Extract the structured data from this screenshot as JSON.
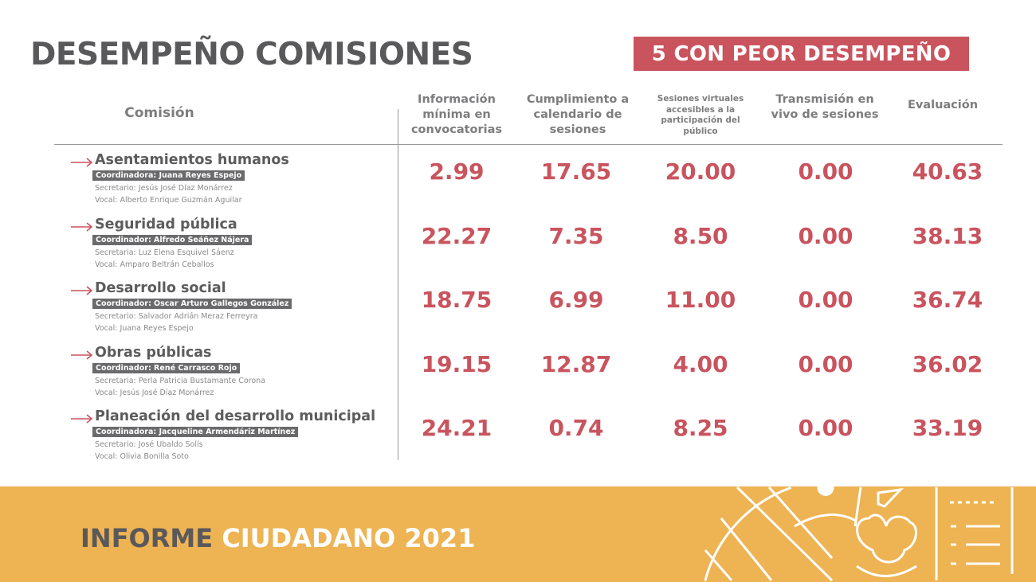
{
  "title": "DESEMPEÑO COMISIONES",
  "badge": "5 CON PEOR DESEMPEÑO",
  "headers": {
    "comision": "Comisión",
    "info": "Información mínima en convocatorias",
    "cumplimiento": "Cumplimiento a calendario de sesiones",
    "virtuales": "Sesiones virtuales accesibles a la participación del público",
    "transmision": "Transmisión en vivo de sesiones",
    "evaluacion": "Evaluación"
  },
  "rows": [
    {
      "name": "Asentamientos humanos",
      "coord": "Coordinadora: Juana Reyes Espejo",
      "sec": "Secretario: Jesús José Díaz Monárrez",
      "vocal": "Vocal: Alberto Enrique Guzmán Aguilar",
      "values": [
        "2.99",
        "17.65",
        "20.00",
        "0.00",
        "40.63"
      ]
    },
    {
      "name": "Seguridad pública",
      "coord": "Coordinador: Alfredo Seáñez Nájera",
      "sec": "Secretaria: Luz Elena Esquivel Sáenz",
      "vocal": "Vocal: Amparo Beltrán Ceballos",
      "values": [
        "22.27",
        "7.35",
        "8.50",
        "0.00",
        "38.13"
      ]
    },
    {
      "name": "Desarrollo social",
      "coord": "Coordinador: Oscar Arturo Gallegos González",
      "sec": "Secretario: Salvador Adrián Meraz Ferreyra",
      "vocal": "Vocal: Juana Reyes Espejo",
      "values": [
        "18.75",
        "6.99",
        "11.00",
        "0.00",
        "36.74"
      ]
    },
    {
      "name": "Obras públicas",
      "coord": "Coordinador: René Carrasco Rojo",
      "sec": "Secretaria: Perla Patricia Bustamante Corona",
      "vocal": "Vocal: Jesús José Díaz Monárrez",
      "values": [
        "19.15",
        "12.87",
        "4.00",
        "0.00",
        "36.02"
      ]
    },
    {
      "name": "Planeación del desarrollo municipal",
      "coord": "Coordinadora: Jacqueline Armendáriz Martínez",
      "sec": "Secretario: José Ubaldo Solís",
      "vocal": "Vocal: Olivia Bonilla Soto",
      "values": [
        "24.21",
        "0.74",
        "8.25",
        "0.00",
        "33.19"
      ]
    }
  ],
  "footer": {
    "part1": "INFORME",
    "part2": "CIUDADANO 2021"
  },
  "colors": {
    "accent": "#c9545e",
    "footer": "#eeb352",
    "text": "#59595b"
  }
}
